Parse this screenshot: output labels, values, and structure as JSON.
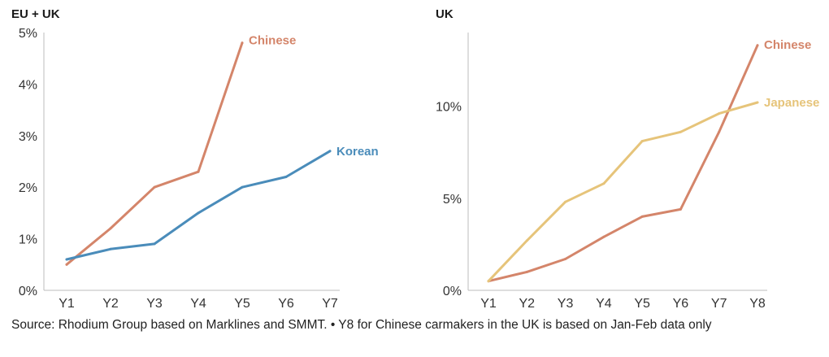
{
  "source_note": "Source: Rhodium Group based on Marklines and SMMT. • Y8 for Chinese carmakers in the UK is based on Jan-Feb data only",
  "colors": {
    "chinese": "#d4856a",
    "korean": "#4a8cba",
    "japanese": "#e6c47a",
    "axis": "#bdbdbd"
  },
  "chart_data": [
    {
      "type": "line",
      "title": "EU + UK",
      "categories": [
        "Y1",
        "Y2",
        "Y3",
        "Y4",
        "Y5",
        "Y6",
        "Y7"
      ],
      "ylim": [
        0,
        5
      ],
      "yticks": [
        0,
        1,
        2,
        3,
        4,
        5
      ],
      "ytick_labels": [
        "0%",
        "1%",
        "2%",
        "3%",
        "4%",
        "5%"
      ],
      "xlabel": "",
      "ylabel": "",
      "series": [
        {
          "name": "Chinese",
          "color": "#d4856a",
          "values": [
            0.5,
            1.2,
            2.0,
            2.3,
            4.8,
            null,
            null
          ]
        },
        {
          "name": "Korean",
          "color": "#4a8cba",
          "values": [
            0.6,
            0.8,
            0.9,
            1.5,
            2.0,
            2.2,
            2.7
          ]
        }
      ]
    },
    {
      "type": "line",
      "title": "UK",
      "categories": [
        "Y1",
        "Y2",
        "Y3",
        "Y4",
        "Y5",
        "Y6",
        "Y7",
        "Y8"
      ],
      "ylim": [
        0,
        14
      ],
      "yticks": [
        0,
        5,
        10
      ],
      "ytick_labels": [
        "0%",
        "5%",
        "10%"
      ],
      "xlabel": "",
      "ylabel": "",
      "series": [
        {
          "name": "Chinese",
          "color": "#d4856a",
          "values": [
            0.5,
            1.0,
            1.7,
            2.9,
            4.0,
            4.4,
            8.6,
            13.3
          ]
        },
        {
          "name": "Japanese",
          "color": "#e6c47a",
          "values": [
            0.5,
            2.7,
            4.8,
            5.8,
            8.1,
            8.6,
            9.6,
            10.2
          ]
        }
      ]
    }
  ]
}
